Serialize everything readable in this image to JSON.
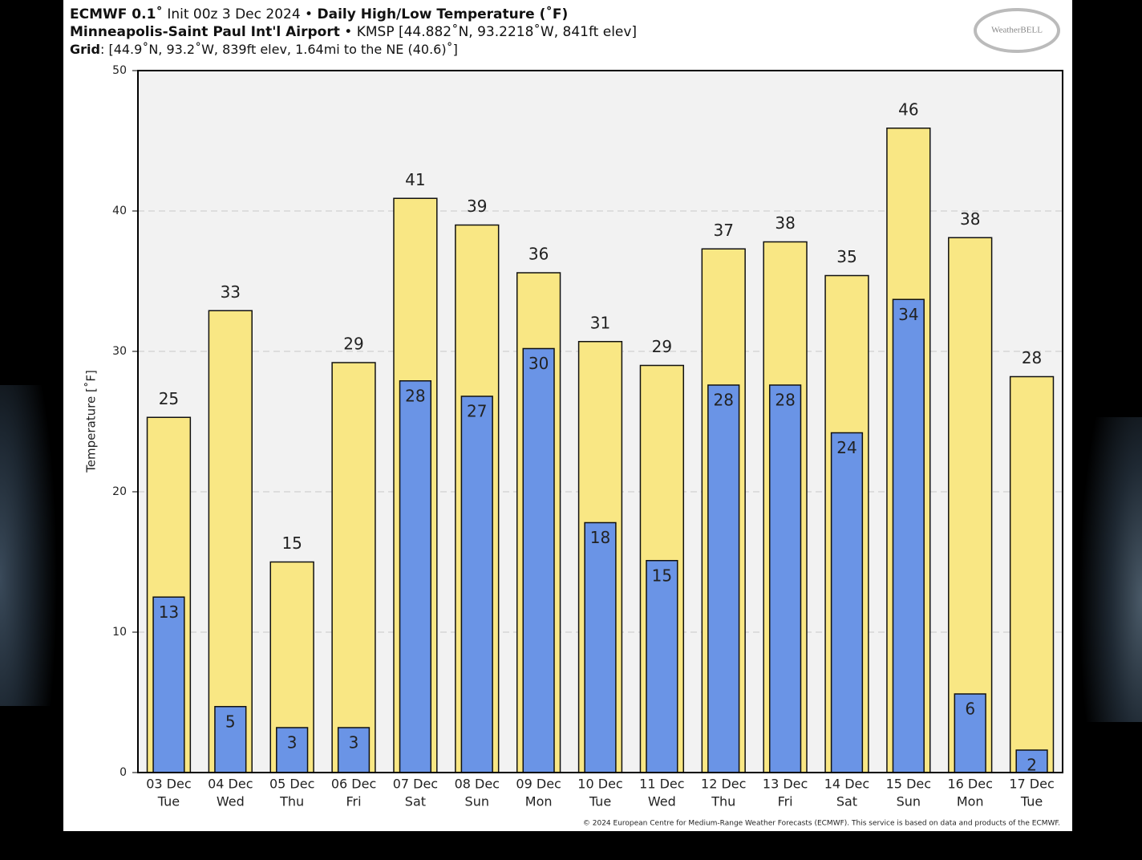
{
  "chart_data": {
    "type": "bar",
    "title": [
      "ECMWF 0.1˚",
      "Init 00z 3 Dec 2024 •",
      "Daily High/Low Temperature (˚F)"
    ],
    "subtitle": [
      "Minneapolis-Saint Paul Int'l Airport",
      "• KMSP [44.882˚N, 93.2218˚W, 841ft elev]"
    ],
    "grid_note": [
      "Grid",
      ": [44.9˚N, 93.2˚W, 839ft elev, 1.64mi to the NE (40.6)˚]"
    ],
    "logo": "WeatherBELL",
    "credit": "© 2024 European Centre for Medium-Range Weather Forecasts (ECMWF). This service is based on data and products of the ECMWF.",
    "y_label": "Temperature [˚F]",
    "categories": [
      [
        "03 Dec",
        "Tue"
      ],
      [
        "04 Dec",
        "Wed"
      ],
      [
        "05 Dec",
        "Thu"
      ],
      [
        "06 Dec",
        "Fri"
      ],
      [
        "07 Dec",
        "Sat"
      ],
      [
        "08 Dec",
        "Sun"
      ],
      [
        "09 Dec",
        "Mon"
      ],
      [
        "10 Dec",
        "Tue"
      ],
      [
        "11 Dec",
        "Wed"
      ],
      [
        "12 Dec",
        "Thu"
      ],
      [
        "13 Dec",
        "Fri"
      ],
      [
        "14 Dec",
        "Sat"
      ],
      [
        "15 Dec",
        "Sun"
      ],
      [
        "16 Dec",
        "Mon"
      ],
      [
        "17 Dec",
        "Tue"
      ]
    ],
    "series": [
      {
        "color": "#f9e784",
        "label_position": "above",
        "values": [
          25.3,
          32.9,
          15.0,
          29.2,
          40.9,
          39.0,
          35.6,
          30.7,
          29.0,
          37.3,
          37.8,
          35.4,
          45.9,
          38.1,
          28.2
        ],
        "value_labels": [
          "25",
          "33",
          "15",
          "29",
          "41",
          "39",
          "36",
          "31",
          "29",
          "37",
          "38",
          "35",
          "46",
          "38",
          "28"
        ]
      },
      {
        "color": "#6a94e6",
        "label_position": "inside",
        "values": [
          12.5,
          4.7,
          3.2,
          3.2,
          27.9,
          26.8,
          30.2,
          17.8,
          15.1,
          27.6,
          27.6,
          24.2,
          33.7,
          5.6,
          1.6
        ],
        "value_labels": [
          "13",
          "5",
          "3",
          "3",
          "28",
          "27",
          "30",
          "18",
          "15",
          "28",
          "28",
          "24",
          "34",
          "6",
          "2"
        ]
      }
    ],
    "ylim": [
      0,
      50
    ],
    "yticks": [
      0,
      10,
      20,
      30,
      40,
      50
    ],
    "grid": true
  }
}
